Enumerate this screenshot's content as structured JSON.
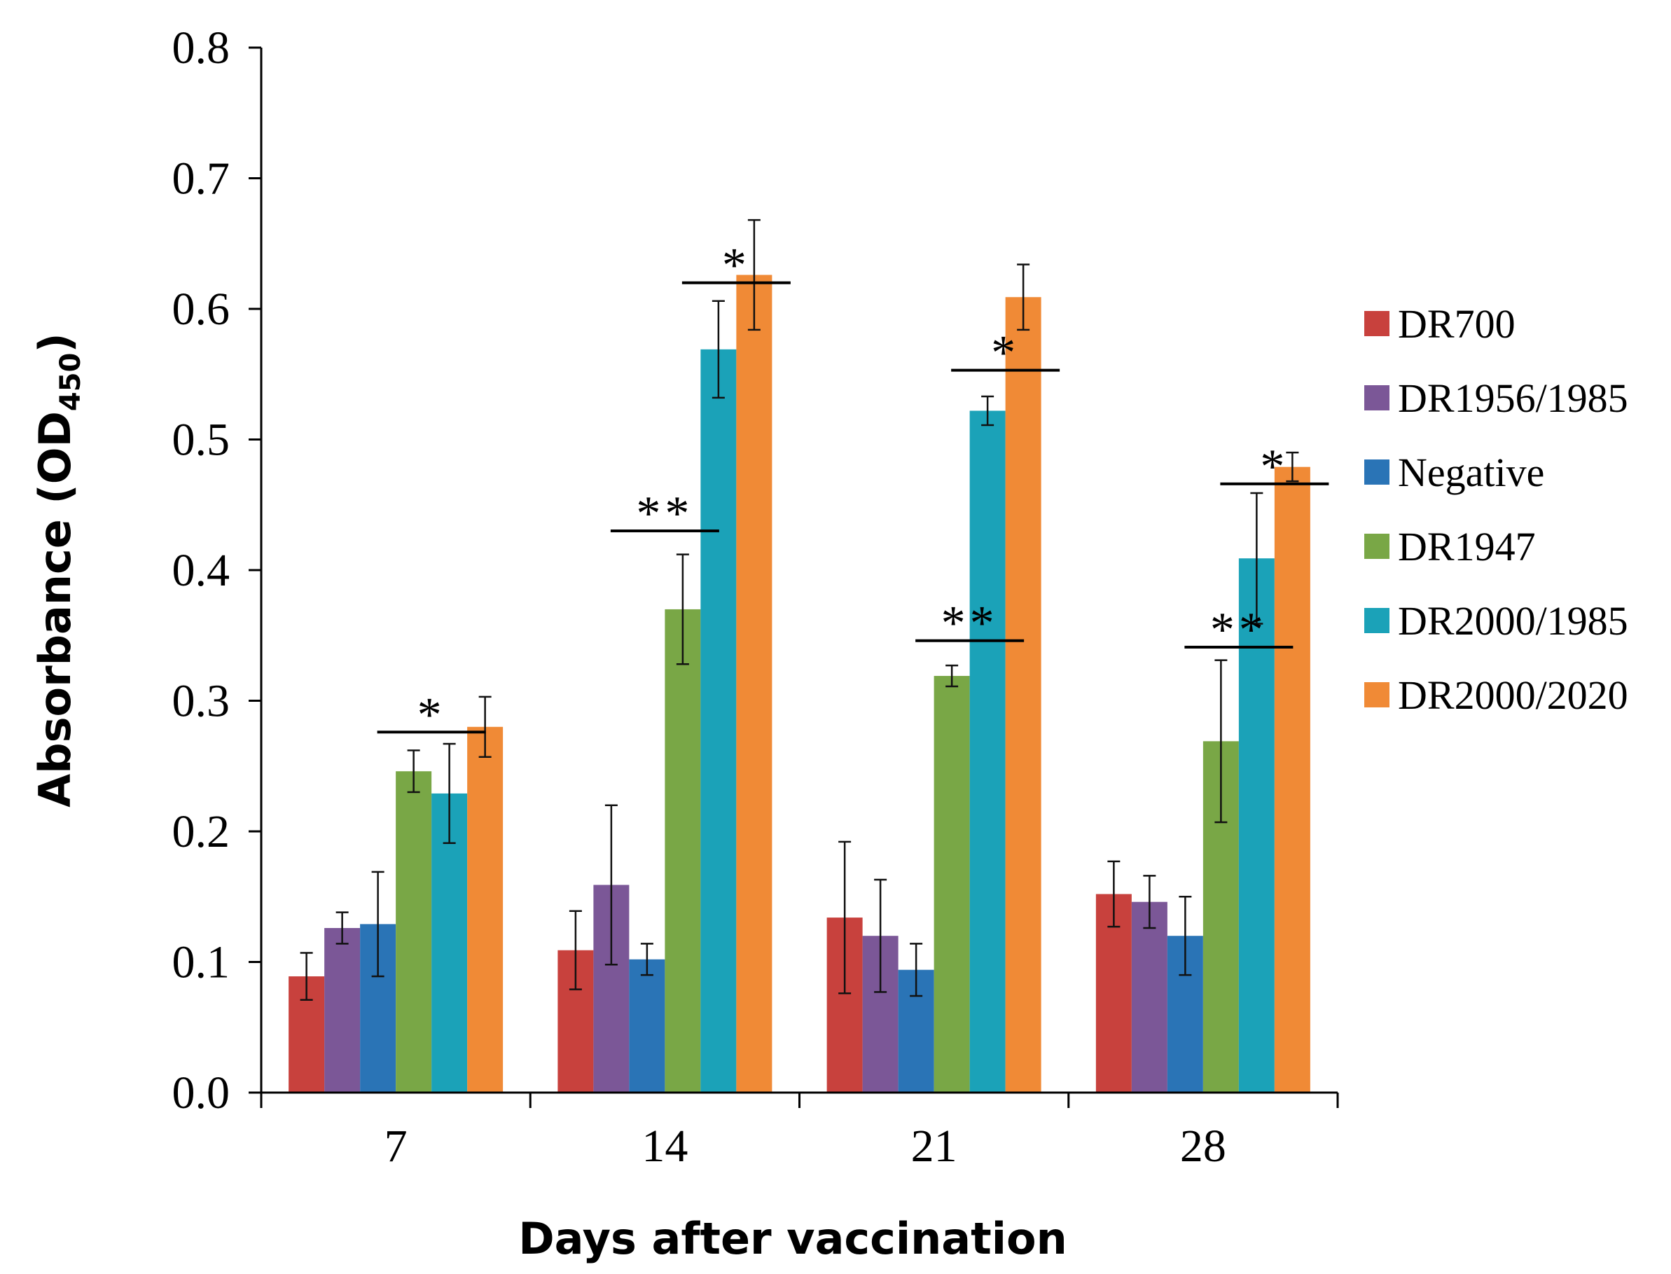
{
  "chart_data": {
    "type": "bar",
    "title": "",
    "xlabel": "Days after vaccination",
    "ylabel": "Absorbance (OD450)",
    "ylabel_main": "Absorbance (OD",
    "ylabel_sub": "450",
    "ylabel_close": ")",
    "ylim": [
      0,
      0.8
    ],
    "yticks": [
      "0.0",
      "0.1",
      "0.2",
      "0.3",
      "0.4",
      "0.5",
      "0.6",
      "0.7",
      "0.8"
    ],
    "categories": [
      "7",
      "14",
      "21",
      "28"
    ],
    "legend_position": "right",
    "series": [
      {
        "name": "DR700",
        "color": "#c8413d",
        "values": [
          0.089,
          0.109,
          0.134,
          0.152
        ],
        "errors": [
          0.018,
          0.03,
          0.058,
          0.025
        ]
      },
      {
        "name": "DR1956/1985",
        "color": "#7b5797",
        "values": [
          0.126,
          0.159,
          0.12,
          0.146
        ],
        "errors": [
          0.012,
          0.061,
          0.043,
          0.02
        ]
      },
      {
        "name": "Negative",
        "color": "#2a74b6",
        "values": [
          0.129,
          0.102,
          0.094,
          0.12
        ],
        "errors": [
          0.04,
          0.012,
          0.02,
          0.03
        ]
      },
      {
        "name": "DR1947",
        "color": "#79a746",
        "values": [
          0.246,
          0.37,
          0.319,
          0.269
        ],
        "errors": [
          0.016,
          0.042,
          0.008,
          0.062
        ]
      },
      {
        "name": "DR2000/1985",
        "color": "#1ba2b8",
        "values": [
          0.229,
          0.569,
          0.522,
          0.409
        ],
        "errors": [
          0.038,
          0.037,
          0.011,
          0.05
        ]
      },
      {
        "name": "DR2000/2020",
        "color": "#f08a36",
        "values": [
          0.28,
          0.626,
          0.609,
          0.479
        ],
        "errors": [
          0.023,
          0.042,
          0.025,
          0.011
        ]
      }
    ],
    "annotations": [
      {
        "label": "*",
        "category": "7",
        "from_series": 3,
        "to_series": 4,
        "y": 0.276
      },
      {
        "label": "**",
        "category": "14",
        "from_series": 2,
        "to_series": 3,
        "y": 0.43
      },
      {
        "label": "*",
        "category": "14",
        "from_series": 4,
        "to_series": 5,
        "y": 0.62
      },
      {
        "label": "**",
        "category": "21",
        "from_series": 3,
        "to_series": 4,
        "y": 0.346
      },
      {
        "label": "*",
        "category": "21",
        "from_series": 4,
        "to_series": 5,
        "y": 0.553
      },
      {
        "label": "**",
        "category": "28",
        "from_series": 3,
        "to_series": 4,
        "y": 0.341
      },
      {
        "label": "*",
        "category": "28",
        "from_series": 4,
        "to_series": 5,
        "y": 0.466
      }
    ]
  }
}
